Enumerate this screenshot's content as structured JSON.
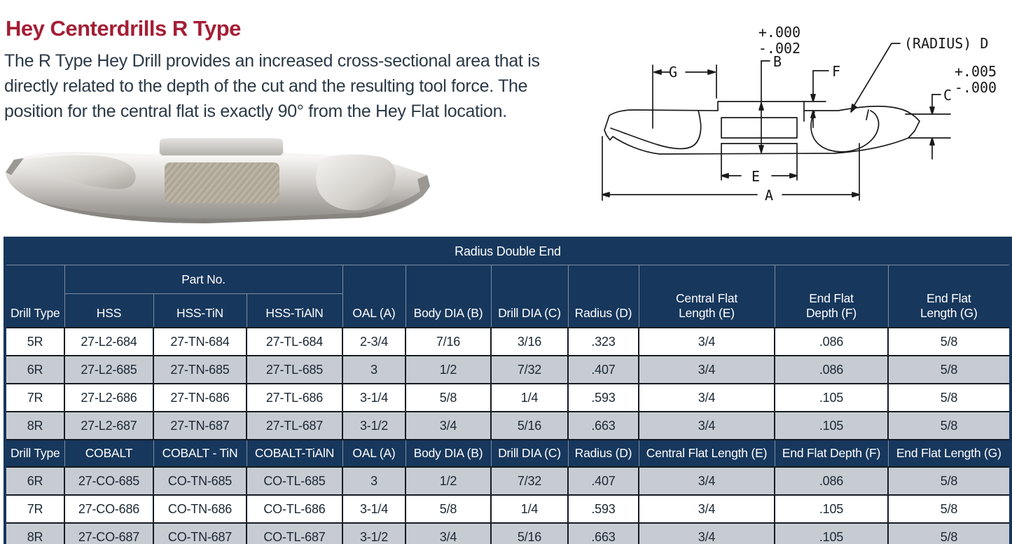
{
  "page": {
    "title": "Hey Centerdrills R Type",
    "description": "The R Type Hey Drill provides an increased cross-sectional area that is directly related to the depth of the cut and the resulting tool force. The position for the central flat is exactly 90° from the Hey Flat location."
  },
  "diagram": {
    "labels": {
      "a": "A",
      "b": "B",
      "c": "C",
      "e": "E",
      "f": "F",
      "g": "G",
      "radius_d": "(RADIUS) D"
    },
    "tolerances": {
      "b_plus": "+.000",
      "b_minus": "-.002",
      "d_plus": "+.005",
      "d_minus": "-.000"
    }
  },
  "table": {
    "title": "Radius Double End",
    "s1": {
      "drill_type": "Drill Type",
      "part_no": "Part No.",
      "hss": "HSS",
      "hss_tin": "HSS-TiN",
      "hss_tialn": "HSS-TiAlN",
      "oal": "OAL (A)",
      "body_dia": "Body DIA (B)",
      "drill_dia": "Drill DIA (C)",
      "radius": "Radius (D)",
      "central_flat": "Central Flat\nLength (E)",
      "end_flat_depth": "End Flat\nDepth (F)",
      "end_flat_length": "End Flat\nLength (G)",
      "rows": [
        [
          "5R",
          "27-L2-684",
          "27-TN-684",
          "27-TL-684",
          "2-3/4",
          "7/16",
          "3/16",
          ".323",
          "3/4",
          ".086",
          "5/8"
        ],
        [
          "6R",
          "27-L2-685",
          "27-TN-685",
          "27-TL-685",
          "3",
          "1/2",
          "7/32",
          ".407",
          "3/4",
          ".086",
          "5/8"
        ],
        [
          "7R",
          "27-L2-686",
          "27-TN-686",
          "27-TL-686",
          "3-1/4",
          "5/8",
          "1/4",
          ".593",
          "3/4",
          ".105",
          "5/8"
        ],
        [
          "8R",
          "27-L2-687",
          "27-TN-687",
          "27-TL-687",
          "3-1/2",
          "3/4",
          "5/16",
          ".663",
          "3/4",
          ".105",
          "5/8"
        ]
      ]
    },
    "s2": {
      "drill_type": "Drill Type",
      "cobalt": "COBALT",
      "cobalt_tin": "COBALT - TiN",
      "cobalt_tialn": "COBALT-TiAlN",
      "oal": "OAL (A)",
      "body_dia": "Body DIA (B)",
      "drill_dia": "Drill DIA (C)",
      "radius": "Radius (D)",
      "central_flat": "Central Flat Length (E)",
      "end_flat_depth": "End Flat Depth (F)",
      "end_flat_length": "End Flat Length (G)",
      "rows": [
        [
          "6R",
          "27-CO-685",
          "CO-TN-685",
          "CO-TL-685",
          "3",
          "1/2",
          "7/32",
          ".407",
          "3/4",
          ".086",
          "5/8"
        ],
        [
          "7R",
          "27-CO-686",
          "CO-TN-686",
          "CO-TL-686",
          "3-1/4",
          "5/8",
          "1/4",
          ".593",
          "3/4",
          ".105",
          "5/8"
        ],
        [
          "8R",
          "27-CO-687",
          "CO-TN-687",
          "CO-TL-687",
          "3-1/2",
          "3/4",
          "5/16",
          ".663",
          "3/4",
          ".105",
          "5/8"
        ]
      ]
    }
  },
  "colors": {
    "title_red": "#a41e35",
    "header_navy": "#17375c",
    "row_gray": "#c7ccd3",
    "text_dark": "#1b2833"
  }
}
